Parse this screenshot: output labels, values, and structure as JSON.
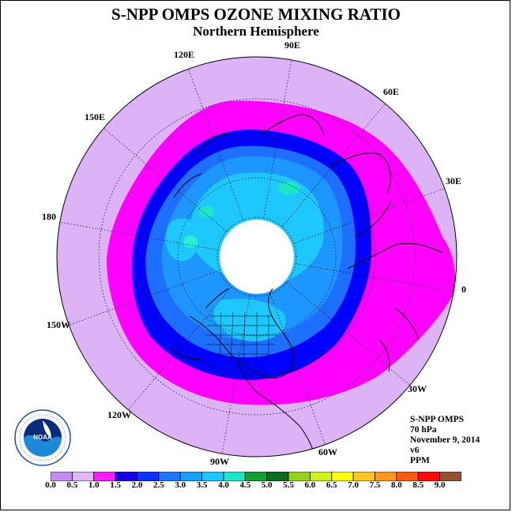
{
  "title": "S-NPP OMPS OZONE MIXING RATIO",
  "subtitle": "Northern Hemisphere",
  "longitude_labels": [
    "90E",
    "60E",
    "30E",
    "0",
    "30W",
    "60W",
    "90W",
    "120W",
    "150W",
    "180",
    "150E",
    "120E"
  ],
  "info": {
    "instrument": "S-NPP OMPS",
    "level": "70 hPa",
    "date": "November 9, 2014",
    "version": "v6",
    "units": "PPM"
  },
  "colorbar": {
    "ticks": [
      "0.0",
      "0.5",
      "1.0",
      "1.5",
      "2.0",
      "2.5",
      "3.0",
      "3.5",
      "4.0",
      "4.5",
      "5.0",
      "5.5",
      "6.0",
      "6.5",
      "7.0",
      "7.5",
      "8.0",
      "8.5",
      "9.0"
    ],
    "colors": [
      "#c58af5",
      "#e0b8f5",
      "#ff1aff",
      "#1a00e6",
      "#0a32ff",
      "#1e78ff",
      "#14a0ff",
      "#1ec8ff",
      "#1ee6c8",
      "#14a032",
      "#0a6e1e",
      "#96d21e",
      "#d2f01e",
      "#ffff14",
      "#ffc81e",
      "#ff961e",
      "#ff5a14",
      "#ff0a0a",
      "#965032"
    ]
  },
  "colors": {
    "outer_bg": "#dcb4f5",
    "magenta_band": "#ff00ff",
    "dark_blue": "#0000ff",
    "mid_blue": "#1e6eff",
    "light_blue": "#1e96ff",
    "cyan": "#1ec8ff",
    "aqua": "#28f0d2",
    "polar_night": "#ffffff"
  }
}
